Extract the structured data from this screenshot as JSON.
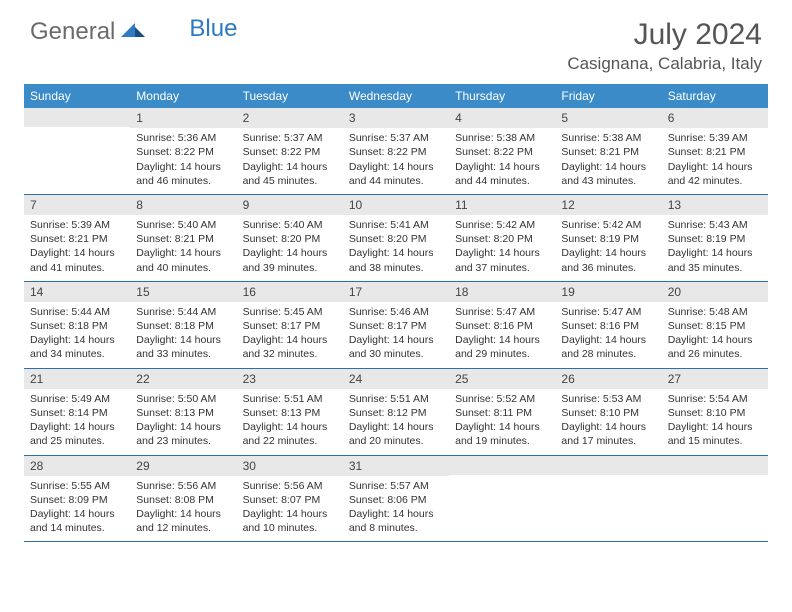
{
  "logo": {
    "text1": "General",
    "text2": "Blue"
  },
  "title": "July 2024",
  "location": "Casignana, Calabria, Italy",
  "colors": {
    "header_bg": "#3b8bc8",
    "header_fg": "#ffffff",
    "daynum_bg": "#e8e8e8",
    "border": "#2d6fa8",
    "logo_grey": "#6b6b6b",
    "logo_blue": "#2d7cc1",
    "text": "#333333"
  },
  "day_labels": [
    "Sunday",
    "Monday",
    "Tuesday",
    "Wednesday",
    "Thursday",
    "Friday",
    "Saturday"
  ],
  "weeks": [
    [
      {
        "n": "",
        "sr": "",
        "ss": "",
        "dl": ""
      },
      {
        "n": "1",
        "sr": "Sunrise: 5:36 AM",
        "ss": "Sunset: 8:22 PM",
        "dl": "Daylight: 14 hours and 46 minutes."
      },
      {
        "n": "2",
        "sr": "Sunrise: 5:37 AM",
        "ss": "Sunset: 8:22 PM",
        "dl": "Daylight: 14 hours and 45 minutes."
      },
      {
        "n": "3",
        "sr": "Sunrise: 5:37 AM",
        "ss": "Sunset: 8:22 PM",
        "dl": "Daylight: 14 hours and 44 minutes."
      },
      {
        "n": "4",
        "sr": "Sunrise: 5:38 AM",
        "ss": "Sunset: 8:22 PM",
        "dl": "Daylight: 14 hours and 44 minutes."
      },
      {
        "n": "5",
        "sr": "Sunrise: 5:38 AM",
        "ss": "Sunset: 8:21 PM",
        "dl": "Daylight: 14 hours and 43 minutes."
      },
      {
        "n": "6",
        "sr": "Sunrise: 5:39 AM",
        "ss": "Sunset: 8:21 PM",
        "dl": "Daylight: 14 hours and 42 minutes."
      }
    ],
    [
      {
        "n": "7",
        "sr": "Sunrise: 5:39 AM",
        "ss": "Sunset: 8:21 PM",
        "dl": "Daylight: 14 hours and 41 minutes."
      },
      {
        "n": "8",
        "sr": "Sunrise: 5:40 AM",
        "ss": "Sunset: 8:21 PM",
        "dl": "Daylight: 14 hours and 40 minutes."
      },
      {
        "n": "9",
        "sr": "Sunrise: 5:40 AM",
        "ss": "Sunset: 8:20 PM",
        "dl": "Daylight: 14 hours and 39 minutes."
      },
      {
        "n": "10",
        "sr": "Sunrise: 5:41 AM",
        "ss": "Sunset: 8:20 PM",
        "dl": "Daylight: 14 hours and 38 minutes."
      },
      {
        "n": "11",
        "sr": "Sunrise: 5:42 AM",
        "ss": "Sunset: 8:20 PM",
        "dl": "Daylight: 14 hours and 37 minutes."
      },
      {
        "n": "12",
        "sr": "Sunrise: 5:42 AM",
        "ss": "Sunset: 8:19 PM",
        "dl": "Daylight: 14 hours and 36 minutes."
      },
      {
        "n": "13",
        "sr": "Sunrise: 5:43 AM",
        "ss": "Sunset: 8:19 PM",
        "dl": "Daylight: 14 hours and 35 minutes."
      }
    ],
    [
      {
        "n": "14",
        "sr": "Sunrise: 5:44 AM",
        "ss": "Sunset: 8:18 PM",
        "dl": "Daylight: 14 hours and 34 minutes."
      },
      {
        "n": "15",
        "sr": "Sunrise: 5:44 AM",
        "ss": "Sunset: 8:18 PM",
        "dl": "Daylight: 14 hours and 33 minutes."
      },
      {
        "n": "16",
        "sr": "Sunrise: 5:45 AM",
        "ss": "Sunset: 8:17 PM",
        "dl": "Daylight: 14 hours and 32 minutes."
      },
      {
        "n": "17",
        "sr": "Sunrise: 5:46 AM",
        "ss": "Sunset: 8:17 PM",
        "dl": "Daylight: 14 hours and 30 minutes."
      },
      {
        "n": "18",
        "sr": "Sunrise: 5:47 AM",
        "ss": "Sunset: 8:16 PM",
        "dl": "Daylight: 14 hours and 29 minutes."
      },
      {
        "n": "19",
        "sr": "Sunrise: 5:47 AM",
        "ss": "Sunset: 8:16 PM",
        "dl": "Daylight: 14 hours and 28 minutes."
      },
      {
        "n": "20",
        "sr": "Sunrise: 5:48 AM",
        "ss": "Sunset: 8:15 PM",
        "dl": "Daylight: 14 hours and 26 minutes."
      }
    ],
    [
      {
        "n": "21",
        "sr": "Sunrise: 5:49 AM",
        "ss": "Sunset: 8:14 PM",
        "dl": "Daylight: 14 hours and 25 minutes."
      },
      {
        "n": "22",
        "sr": "Sunrise: 5:50 AM",
        "ss": "Sunset: 8:13 PM",
        "dl": "Daylight: 14 hours and 23 minutes."
      },
      {
        "n": "23",
        "sr": "Sunrise: 5:51 AM",
        "ss": "Sunset: 8:13 PM",
        "dl": "Daylight: 14 hours and 22 minutes."
      },
      {
        "n": "24",
        "sr": "Sunrise: 5:51 AM",
        "ss": "Sunset: 8:12 PM",
        "dl": "Daylight: 14 hours and 20 minutes."
      },
      {
        "n": "25",
        "sr": "Sunrise: 5:52 AM",
        "ss": "Sunset: 8:11 PM",
        "dl": "Daylight: 14 hours and 19 minutes."
      },
      {
        "n": "26",
        "sr": "Sunrise: 5:53 AM",
        "ss": "Sunset: 8:10 PM",
        "dl": "Daylight: 14 hours and 17 minutes."
      },
      {
        "n": "27",
        "sr": "Sunrise: 5:54 AM",
        "ss": "Sunset: 8:10 PM",
        "dl": "Daylight: 14 hours and 15 minutes."
      }
    ],
    [
      {
        "n": "28",
        "sr": "Sunrise: 5:55 AM",
        "ss": "Sunset: 8:09 PM",
        "dl": "Daylight: 14 hours and 14 minutes."
      },
      {
        "n": "29",
        "sr": "Sunrise: 5:56 AM",
        "ss": "Sunset: 8:08 PM",
        "dl": "Daylight: 14 hours and 12 minutes."
      },
      {
        "n": "30",
        "sr": "Sunrise: 5:56 AM",
        "ss": "Sunset: 8:07 PM",
        "dl": "Daylight: 14 hours and 10 minutes."
      },
      {
        "n": "31",
        "sr": "Sunrise: 5:57 AM",
        "ss": "Sunset: 8:06 PM",
        "dl": "Daylight: 14 hours and 8 minutes."
      },
      {
        "n": "",
        "sr": "",
        "ss": "",
        "dl": ""
      },
      {
        "n": "",
        "sr": "",
        "ss": "",
        "dl": ""
      },
      {
        "n": "",
        "sr": "",
        "ss": "",
        "dl": ""
      }
    ]
  ]
}
